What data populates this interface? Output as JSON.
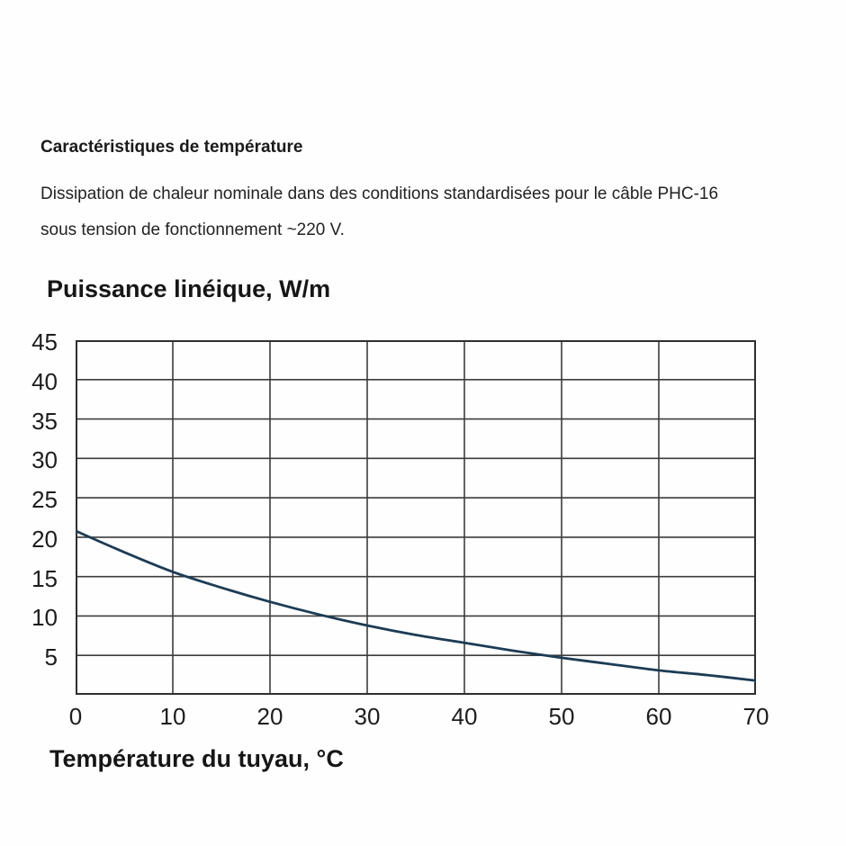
{
  "page": {
    "background": "#fefefe",
    "heading": "Caractéristiques de température",
    "description_line1": "Dissipation de chaleur nominale dans des conditions standardisées pour le câble PHC-16",
    "description_line2": "sous tension de fonctionnement ~220 V."
  },
  "chart_data": {
    "type": "line",
    "title": "Puissance linéique, W/m",
    "xlabel": "Température du tuyau, °C",
    "ylabel": "Puissance linéique, W/m",
    "xlim": [
      0,
      70
    ],
    "ylim": [
      0,
      45
    ],
    "x_ticks": [
      0,
      10,
      20,
      30,
      40,
      50,
      60,
      70
    ],
    "y_ticks": [
      5,
      10,
      15,
      20,
      25,
      30,
      35,
      40,
      45
    ],
    "grid": "on",
    "legend_position": "none",
    "series": [
      {
        "name": "PHC-16",
        "points": [
          [
            0,
            20.8
          ],
          [
            5,
            18.1
          ],
          [
            10,
            15.6
          ],
          [
            15,
            13.6
          ],
          [
            20,
            11.8
          ],
          [
            25,
            10.2
          ],
          [
            30,
            8.8
          ],
          [
            35,
            7.6
          ],
          [
            40,
            6.6
          ],
          [
            45,
            5.6
          ],
          [
            50,
            4.7
          ],
          [
            55,
            3.9
          ],
          [
            60,
            3.1
          ],
          [
            65,
            2.5
          ],
          [
            70,
            1.8
          ]
        ],
        "color": "#1c3c55"
      }
    ],
    "colors": {
      "grid_line": "#3c3c3c",
      "plot_border": "#2f2f2f",
      "tick_text": "#1d1d1d"
    }
  }
}
